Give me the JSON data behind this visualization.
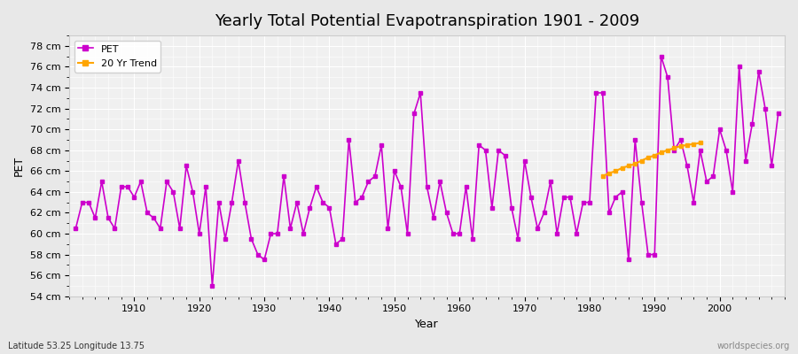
{
  "title": "Yearly Total Potential Evapotranspiration 1901 - 2009",
  "xlabel": "Year",
  "ylabel": "PET",
  "subtitle": "Latitude 53.25 Longitude 13.75",
  "watermark": "worldspecies.org",
  "ylim": [
    54,
    79
  ],
  "yticks": [
    54,
    56,
    58,
    60,
    62,
    64,
    66,
    68,
    70,
    72,
    74,
    76,
    78
  ],
  "background_color": "#e8e8e8",
  "plot_background_color": "#f0f0f0",
  "pet_color": "#cc00cc",
  "trend_color": "#ffa500",
  "pet_linewidth": 1.2,
  "trend_linewidth": 1.5,
  "years": [
    1901,
    1902,
    1903,
    1904,
    1905,
    1906,
    1907,
    1908,
    1909,
    1910,
    1911,
    1912,
    1913,
    1914,
    1915,
    1916,
    1917,
    1918,
    1919,
    1920,
    1921,
    1922,
    1923,
    1924,
    1925,
    1926,
    1927,
    1928,
    1929,
    1930,
    1931,
    1932,
    1933,
    1934,
    1935,
    1936,
    1937,
    1938,
    1939,
    1940,
    1941,
    1942,
    1943,
    1944,
    1945,
    1946,
    1947,
    1948,
    1949,
    1950,
    1951,
    1952,
    1953,
    1954,
    1955,
    1956,
    1957,
    1958,
    1959,
    1960,
    1961,
    1962,
    1963,
    1964,
    1965,
    1966,
    1967,
    1968,
    1969,
    1970,
    1971,
    1972,
    1973,
    1974,
    1975,
    1976,
    1977,
    1978,
    1979,
    1980,
    1981,
    1982,
    1983,
    1984,
    1985,
    1986,
    1987,
    1988,
    1989,
    1990,
    1991,
    1992,
    1993,
    1994,
    1995,
    1996,
    1997,
    1998,
    1999,
    2000,
    2001,
    2002,
    2003,
    2004,
    2005,
    2006,
    2007,
    2008,
    2009
  ],
  "pet_values": [
    60.5,
    63.0,
    63.0,
    61.5,
    65.0,
    61.5,
    60.5,
    64.5,
    64.5,
    63.5,
    65.0,
    62.0,
    61.5,
    60.5,
    65.0,
    64.0,
    60.5,
    66.5,
    64.0,
    60.0,
    64.5,
    55.0,
    63.0,
    59.5,
    63.0,
    67.0,
    63.0,
    59.5,
    58.0,
    57.5,
    60.0,
    60.0,
    65.5,
    60.5,
    63.0,
    60.0,
    62.5,
    64.5,
    63.0,
    62.5,
    59.0,
    59.5,
    69.0,
    63.0,
    63.5,
    65.0,
    65.5,
    68.5,
    60.5,
    66.0,
    64.5,
    60.0,
    71.5,
    73.5,
    64.5,
    61.5,
    65.0,
    62.0,
    60.0,
    60.0,
    64.5,
    59.5,
    68.5,
    68.0,
    62.5,
    68.0,
    67.5,
    62.5,
    59.5,
    67.0,
    63.5,
    60.5,
    62.0,
    65.0,
    60.0,
    63.5,
    63.5,
    60.0,
    63.0,
    63.0,
    73.5,
    73.5,
    62.0,
    63.5,
    64.0,
    57.5,
    69.0,
    63.0,
    58.0,
    58.0,
    77.0,
    75.0,
    68.0,
    69.0,
    66.5,
    63.0,
    68.0,
    65.0,
    65.5,
    70.0,
    68.0,
    64.0,
    76.0,
    67.0,
    70.5,
    75.5,
    72.0,
    66.5,
    71.5
  ],
  "trend_years": [
    1982,
    1983,
    1984,
    1985,
    1986,
    1987,
    1988,
    1989,
    1990,
    1991,
    1992,
    1993,
    1994,
    1995,
    1996,
    1997
  ],
  "trend_values": [
    65.5,
    65.8,
    66.0,
    66.3,
    66.5,
    66.7,
    67.0,
    67.3,
    67.5,
    67.8,
    68.0,
    68.2,
    68.4,
    68.5,
    68.6,
    68.7
  ]
}
